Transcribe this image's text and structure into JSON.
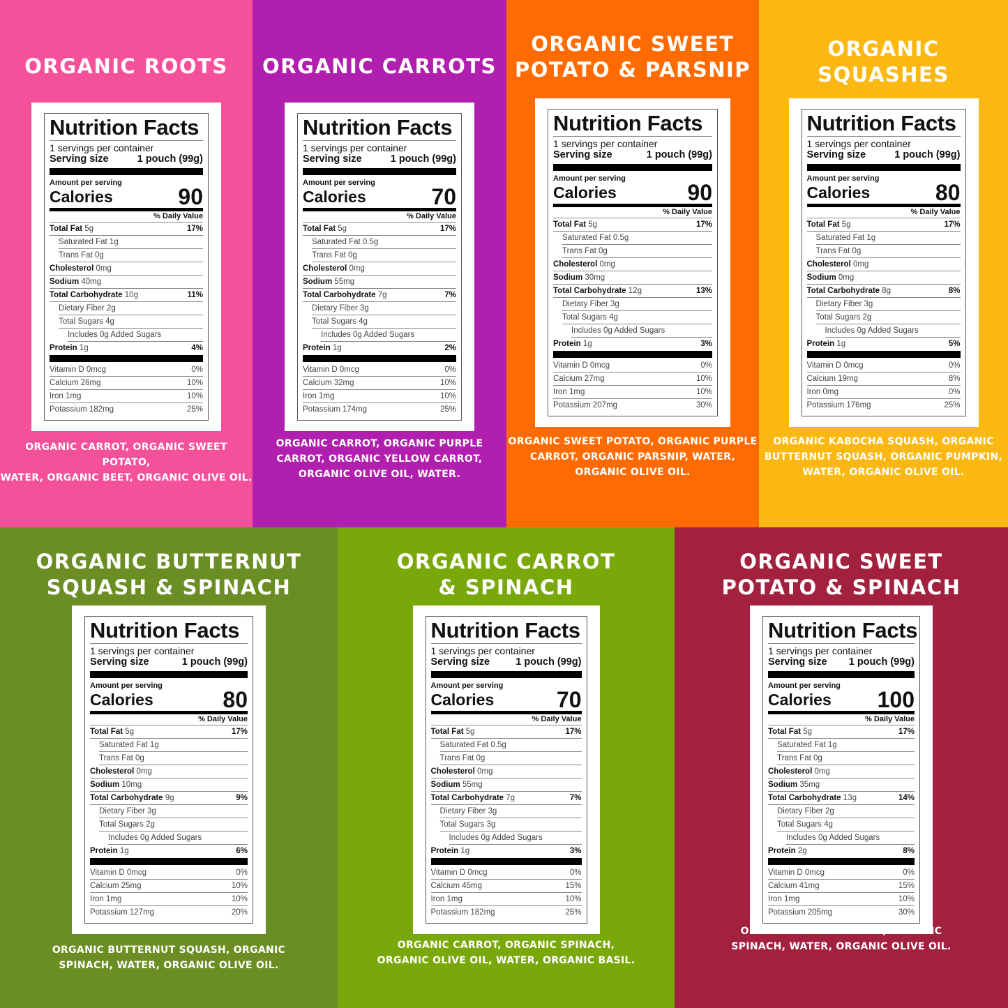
{
  "label_text": {
    "heading": "Nutrition Facts",
    "servings": "1 servings per container",
    "serving_size_label": "Serving size",
    "serving_size_value": "1 pouch (99g)",
    "amount_per_serving": "Amount per serving",
    "calories_label": "Calories",
    "daily_value_header": "% Daily Value"
  },
  "panels": [
    {
      "title": [
        "ORGANIC ROOTS"
      ],
      "color": "#F5519B",
      "calories": "90",
      "nutrients": [
        [
          "Total Fat",
          "5g",
          "17%"
        ],
        [
          "Saturated Fat",
          "1g",
          ""
        ],
        [
          "Trans Fat",
          "0g",
          ""
        ],
        [
          "Cholesterol",
          "0mg",
          ""
        ],
        [
          "Sodium",
          "40mg",
          ""
        ],
        [
          "Total Carbohydrate",
          "10g",
          "11%"
        ],
        [
          "Dietary Fiber",
          "2g",
          ""
        ],
        [
          "Total Sugars",
          "4g",
          ""
        ],
        [
          "Includes 0g Added Sugars",
          "",
          ""
        ],
        [
          "Protein",
          "1g",
          "4%"
        ]
      ],
      "vitamins": [
        [
          "Vitamin D",
          "0mcg",
          "0%"
        ],
        [
          "Calcium",
          "26mg",
          "10%"
        ],
        [
          "Iron",
          "1mg",
          "10%"
        ],
        [
          "Potassium",
          "182mg",
          "25%"
        ]
      ],
      "ingredients": [
        "ORGANIC CARROT, ORGANIC SWEET POTATO,",
        "WATER, ORGANIC BEET, ORGANIC OLIVE OIL."
      ]
    },
    {
      "title": [
        "ORGANIC CARROTS"
      ],
      "color": "#B01FAD",
      "calories": "70",
      "nutrients": [
        [
          "Total Fat",
          "5g",
          "17%"
        ],
        [
          "Saturated Fat",
          "0.5g",
          ""
        ],
        [
          "Trans Fat",
          "0g",
          ""
        ],
        [
          "Cholesterol",
          "0mg",
          ""
        ],
        [
          "Sodium",
          "55mg",
          ""
        ],
        [
          "Total Carbohydrate",
          "7g",
          "7%"
        ],
        [
          "Dietary Fiber",
          "3g",
          ""
        ],
        [
          "Total Sugars",
          "4g",
          ""
        ],
        [
          "Includes 0g Added Sugars",
          "",
          ""
        ],
        [
          "Protein",
          "1g",
          "2%"
        ]
      ],
      "vitamins": [
        [
          "Vitamin D",
          "0mcg",
          "0%"
        ],
        [
          "Calcium",
          "32mg",
          "10%"
        ],
        [
          "Iron",
          "1mg",
          "10%"
        ],
        [
          "Potassium",
          "174mg",
          "25%"
        ]
      ],
      "ingredients": [
        "ORGANIC CARROT, ORGANIC PURPLE",
        "CARROT, ORGANIC YELLOW CARROT,",
        "ORGANIC OLIVE OIL, WATER."
      ]
    },
    {
      "title": [
        "ORGANIC SWEET",
        "POTATO & PARSNIP"
      ],
      "color": "#FF6B00",
      "calories": "90",
      "nutrients": [
        [
          "Total Fat",
          "5g",
          "17%"
        ],
        [
          "Saturated Fat",
          "0.5g",
          ""
        ],
        [
          "Trans Fat",
          "0g",
          ""
        ],
        [
          "Cholesterol",
          "0mg",
          ""
        ],
        [
          "Sodium",
          "30mg",
          ""
        ],
        [
          "Total Carbohydrate",
          "12g",
          "13%"
        ],
        [
          "Dietary Fiber",
          "3g",
          ""
        ],
        [
          "Total Sugars",
          "4g",
          ""
        ],
        [
          "Includes 0g Added Sugars",
          "",
          ""
        ],
        [
          "Protein",
          "1g",
          "3%"
        ]
      ],
      "vitamins": [
        [
          "Vitamin D",
          "0mcg",
          "0%"
        ],
        [
          "Calcium",
          "27mg",
          "10%"
        ],
        [
          "Iron",
          "1mg",
          "10%"
        ],
        [
          "Potassium",
          "207mg",
          "30%"
        ]
      ],
      "ingredients": [
        "ORGANIC SWEET POTATO, ORGANIC PURPLE",
        "CARROT, ORGANIC PARSNIP, WATER,",
        "ORGANIC OLIVE OIL."
      ]
    },
    {
      "title": [
        "ORGANIC SQUASHES"
      ],
      "color": "#FBB813",
      "calories": "80",
      "nutrients": [
        [
          "Total Fat",
          "5g",
          "17%"
        ],
        [
          "Saturated Fat",
          "1g",
          ""
        ],
        [
          "Trans Fat",
          "0g",
          ""
        ],
        [
          "Cholesterol",
          "0mg",
          ""
        ],
        [
          "Sodium",
          "0mg",
          ""
        ],
        [
          "Total Carbohydrate",
          "8g",
          "8%"
        ],
        [
          "Dietary Fiber",
          "3g",
          ""
        ],
        [
          "Total Sugars",
          "2g",
          ""
        ],
        [
          "Includes 0g Added Sugars",
          "",
          ""
        ],
        [
          "Protein",
          "1g",
          "5%"
        ]
      ],
      "vitamins": [
        [
          "Vitamin D",
          "0mcg",
          "0%"
        ],
        [
          "Calcium",
          "19mg",
          "8%"
        ],
        [
          "Iron",
          "0mg",
          "0%"
        ],
        [
          "Potassium",
          "176mg",
          "25%"
        ]
      ],
      "ingredients": [
        "ORGANIC KABOCHA SQUASH, ORGANIC",
        "BUTTERNUT SQUASH, ORGANIC PUMPKIN,",
        "WATER, ORGANIC OLIVE OIL."
      ]
    },
    {
      "title": [
        "ORGANIC BUTTERNUT",
        "SQUASH & SPINACH"
      ],
      "color": "#6A8D24",
      "calories": "80",
      "nutrients": [
        [
          "Total Fat",
          "5g",
          "17%"
        ],
        [
          "Saturated Fat",
          "1g",
          ""
        ],
        [
          "Trans Fat",
          "0g",
          ""
        ],
        [
          "Cholesterol",
          "0mg",
          ""
        ],
        [
          "Sodium",
          "10mg",
          ""
        ],
        [
          "Total Carbohydrate",
          "9g",
          "9%"
        ],
        [
          "Dietary Fiber",
          "3g",
          ""
        ],
        [
          "Total Sugars",
          "2g",
          ""
        ],
        [
          "Includes 0g Added Sugars",
          "",
          ""
        ],
        [
          "Protein",
          "1g",
          "6%"
        ]
      ],
      "vitamins": [
        [
          "Vitamin D",
          "0mcg",
          "0%"
        ],
        [
          "Calcium",
          "25mg",
          "10%"
        ],
        [
          "Iron",
          "1mg",
          "10%"
        ],
        [
          "Potassium",
          "127mg",
          "20%"
        ]
      ],
      "ingredients": [
        "ORGANIC BUTTERNUT SQUASH, ORGANIC",
        "SPINACH, WATER, ORGANIC OLIVE OIL."
      ]
    },
    {
      "title": [
        "ORGANIC CARROT",
        "& SPINACH"
      ],
      "color": "#79A80A",
      "calories": "70",
      "nutrients": [
        [
          "Total Fat",
          "5g",
          "17%"
        ],
        [
          "Saturated Fat",
          "0.5g",
          ""
        ],
        [
          "Trans Fat",
          "0g",
          ""
        ],
        [
          "Cholesterol",
          "0mg",
          ""
        ],
        [
          "Sodium",
          "55mg",
          ""
        ],
        [
          "Total Carbohydrate",
          "7g",
          "7%"
        ],
        [
          "Dietary Fiber",
          "3g",
          ""
        ],
        [
          "Total Sugars",
          "3g",
          ""
        ],
        [
          "Includes 0g Added Sugars",
          "",
          ""
        ],
        [
          "Protein",
          "1g",
          "3%"
        ]
      ],
      "vitamins": [
        [
          "Vitamin D",
          "0mcg",
          "0%"
        ],
        [
          "Calcium",
          "45mg",
          "15%"
        ],
        [
          "Iron",
          "1mg",
          "10%"
        ],
        [
          "Potassium",
          "182mg",
          "25%"
        ]
      ],
      "ingredients": [
        "ORGANIC CARROT, ORGANIC SPINACH,",
        "ORGANIC OLIVE OIL, WATER, ORGANIC BASIL."
      ]
    },
    {
      "title": [
        "ORGANIC SWEET",
        "POTATO & SPINACH"
      ],
      "color": "#A2213F",
      "calories": "100",
      "nutrients": [
        [
          "Total Fat",
          "5g",
          "17%"
        ],
        [
          "Saturated Fat",
          "1g",
          ""
        ],
        [
          "Trans Fat",
          "0g",
          ""
        ],
        [
          "Cholesterol",
          "0mg",
          ""
        ],
        [
          "Sodium",
          "35mg",
          ""
        ],
        [
          "Total Carbohydrate",
          "13g",
          "14%"
        ],
        [
          "Dietary Fiber",
          "2g",
          ""
        ],
        [
          "Total Sugars",
          "4g",
          ""
        ],
        [
          "Includes 0g Added Sugars",
          "",
          ""
        ],
        [
          "Protein",
          "2g",
          "8%"
        ]
      ],
      "vitamins": [
        [
          "Vitamin D",
          "0mcg",
          "0%"
        ],
        [
          "Calcium",
          "41mg",
          "15%"
        ],
        [
          "Iron",
          "1mg",
          "10%"
        ],
        [
          "Potassium",
          "205mg",
          "30%"
        ]
      ],
      "ingredients": [
        "ORGANIC SWEET POTATO, ORGANIC",
        "SPINACH, WATER, ORGANIC OLIVE OIL."
      ]
    }
  ]
}
